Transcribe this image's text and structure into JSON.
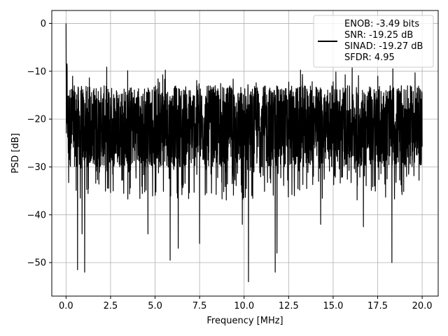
{
  "chart_data": {
    "type": "line",
    "xlabel": "Frequency [MHz]",
    "ylabel": "PSD [dB]",
    "xlim": [
      -0.8,
      20.9
    ],
    "ylim": [
      -57,
      2.7
    ],
    "xticks": [
      0.0,
      2.5,
      5.0,
      7.5,
      10.0,
      12.5,
      15.0,
      17.5,
      20.0
    ],
    "xtick_labels": [
      "0.0",
      "2.5",
      "5.0",
      "7.5",
      "10.0",
      "12.5",
      "15.0",
      "17.5",
      "20.0"
    ],
    "yticks": [
      0,
      -10,
      -20,
      -30,
      -40,
      -50
    ],
    "ytick_labels": [
      "0",
      "−10",
      "−20",
      "−30",
      "−40",
      "−50"
    ],
    "grid": true,
    "legend_position": "top-right",
    "legend_entries": [
      "ENOB: -3.49 bits",
      "SNR: -19.25 dB",
      "SINAD: -19.27 dB",
      "SFDR: 4.95"
    ],
    "series": [
      {
        "color": "#000000",
        "x_range": [
          0,
          20
        ],
        "peak": {
          "x": 0.0,
          "y": 0.0
        },
        "noise_floor_band": [
          -30,
          -13
        ],
        "deep_dips": [
          {
            "x": 0.65,
            "y": -51.5
          },
          {
            "x": 1.05,
            "y": -52.0
          },
          {
            "x": 0.9,
            "y": -44.0
          },
          {
            "x": 4.6,
            "y": -44.0
          },
          {
            "x": 5.85,
            "y": -49.5
          },
          {
            "x": 6.3,
            "y": -47.0
          },
          {
            "x": 7.5,
            "y": -46.0
          },
          {
            "x": 9.9,
            "y": -42.0
          },
          {
            "x": 10.25,
            "y": -54.0
          },
          {
            "x": 11.75,
            "y": -52.0
          },
          {
            "x": 11.85,
            "y": -48.0
          },
          {
            "x": 14.3,
            "y": -42.0
          },
          {
            "x": 16.7,
            "y": -42.5
          },
          {
            "x": 18.3,
            "y": -50.0
          }
        ]
      }
    ]
  }
}
